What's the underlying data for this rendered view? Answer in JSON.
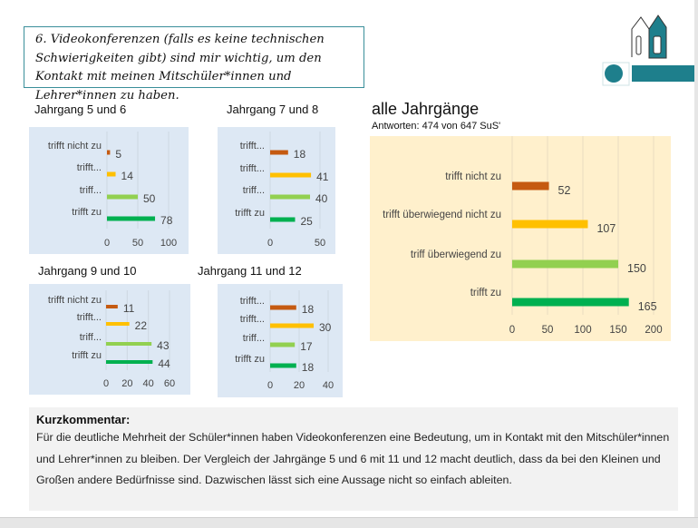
{
  "question": {
    "text": "6. Videokonferenzen (falls es keine technischen Schwierigkeiten gibt) sind mir wichtig, um den Kontakt mit meinen Mitschüler*innen und Lehrer*innen zu haben."
  },
  "logo": {
    "icon": "school-houses-logo",
    "accent_color": "#1e7f8c"
  },
  "colors": {
    "trifft_nicht_zu": "#c55a11",
    "trifft_ueberwiegend_nicht_zu": "#ffc000",
    "triff_ueberwiegend_zu": "#92d050",
    "trifft_zu": "#00b050"
  },
  "chart_data": [
    {
      "type": "bar",
      "title": "Jahrgang 5 und 6",
      "categories": [
        "trifft nicht zu",
        "trifft...",
        "triff...",
        "trifft zu"
      ],
      "values": [
        5,
        14,
        50,
        78
      ],
      "xticks": [
        "0",
        "50",
        "100"
      ],
      "xlim": [
        0,
        100
      ],
      "grid": true
    },
    {
      "type": "bar",
      "title": "Jahrgang 7 und 8",
      "categories": [
        "trifft...",
        "trifft...",
        "triff...",
        "trifft zu"
      ],
      "values": [
        18,
        41,
        40,
        25
      ],
      "xticks": [
        "0",
        "50"
      ],
      "xlim": [
        0,
        50
      ],
      "grid": true
    },
    {
      "type": "bar",
      "title": "Jahrgang 9 und 10",
      "categories": [
        "trifft nicht zu",
        "trifft...",
        "triff...",
        "trifft zu"
      ],
      "values": [
        11,
        22,
        43,
        44
      ],
      "xticks": [
        "0",
        "20",
        "40",
        "60"
      ],
      "xlim": [
        0,
        60
      ],
      "grid": true
    },
    {
      "type": "bar",
      "title": "Jahrgang 11 und 12",
      "categories": [
        "trifft...",
        "trifft...",
        "triff...",
        "trifft zu"
      ],
      "values": [
        18,
        30,
        17,
        18
      ],
      "xticks": [
        "0",
        "20",
        "40"
      ],
      "xlim": [
        0,
        40
      ],
      "grid": true
    },
    {
      "type": "bar",
      "title": "alle Jahrgänge",
      "subtitle": "Antworten: 474 von 647 SuS'",
      "categories": [
        "trifft nicht zu",
        "trifft überwiegend nicht zu",
        "triff überwiegend zu",
        "trifft zu"
      ],
      "values": [
        52,
        107,
        150,
        165
      ],
      "xticks": [
        "0",
        "50",
        "100",
        "150",
        "200"
      ],
      "xlim": [
        0,
        200
      ],
      "grid": true
    }
  ],
  "comment": {
    "title": "Kurzkommentar:",
    "text": "Für die deutliche Mehrheit der Schüler*innen haben Videokonferenzen eine Bedeutung, um in Kontakt mit den Mitschüler*innen und Lehrer*innen zu bleiben. Der Vergleich der Jahrgänge 5 und 6 mit 11 und 12 macht deutlich, dass da bei den Kleinen und Großen andere Bedürfnisse sind. Dazwischen lässt sich eine Aussage nicht so einfach ableiten."
  }
}
